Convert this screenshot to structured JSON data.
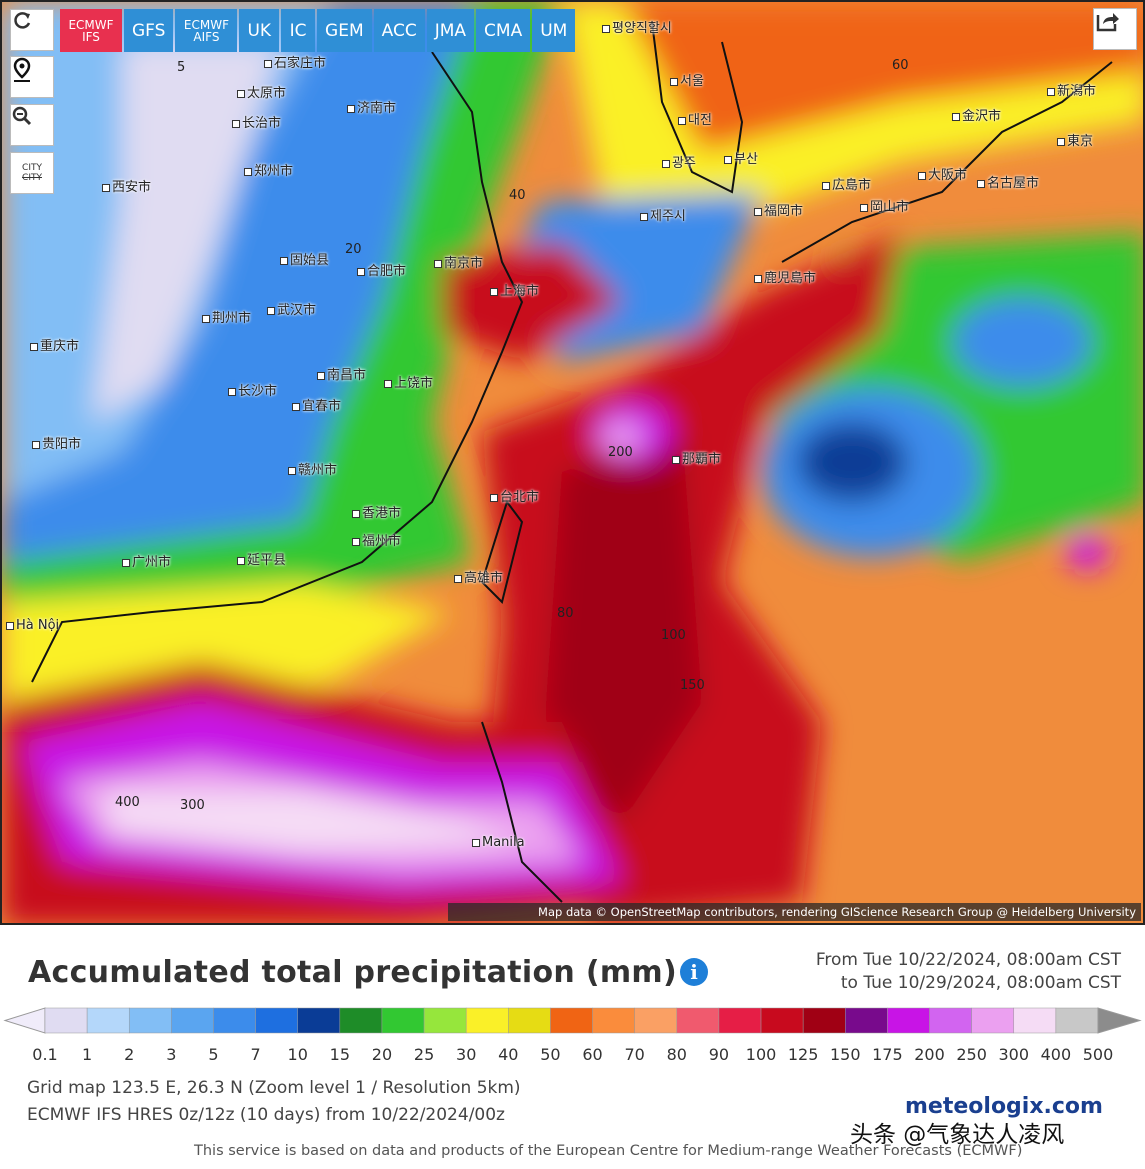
{
  "models": [
    "ECMWF IFS",
    "GFS",
    "ECMWF AIFS",
    "UK",
    "IC",
    "GEM",
    "ACC",
    "JMA",
    "CMA",
    "UM"
  ],
  "active_model": "ECMWF IFS",
  "side_buttons": {
    "city": "CITY"
  },
  "map": {
    "attribution": "Map data © OpenStreetMap contributors, rendering GIScience Research Group @ Heidelberg University",
    "cities": [
      "石家庄市",
      "太原市",
      "济南市",
      "长治市",
      "郑州市",
      "西安市",
      "固始县",
      "合肥市",
      "南京市",
      "上海市",
      "荆州市",
      "武汉市",
      "重庆市",
      "长沙市",
      "南昌市",
      "上饶市",
      "宜春市",
      "贵阳市",
      "赣州市",
      "福州市",
      "台北市",
      "高雄市",
      "延平县",
      "广州市",
      "香港市",
      "Hà Nội",
      "Manila",
      "서울",
      "대전",
      "광주",
      "부산",
      "제주시",
      "평양직할시",
      "広島市",
      "岡山市",
      "大阪市",
      "名古屋市",
      "金沢市",
      "新潟市",
      "東京",
      "福岡市",
      "鹿児島市",
      "那覇市"
    ],
    "contours": [
      "5",
      "20",
      "40",
      "60",
      "80",
      "100",
      "150",
      "200",
      "300",
      "400"
    ]
  },
  "panel": {
    "title": "Accumulated total precipitation (mm)",
    "from": "From Tue 10/22/2024, 08:00am CST",
    "to": "to Tue 10/29/2024, 08:00am CST",
    "grid_info": "Grid map 123.5 E, 26.3 N (Zoom level 1 / Resolution 5km)",
    "run_info": "ECMWF IFS HRES 0z/12z (10 days) from 10/22/2024/00z",
    "brand": "meteologix.com",
    "watermark": "头条 @气象达人凌风",
    "disclaimer": "This service is based on data and products of the European Centre for Medium-range Weather Forecasts (ECMWF)"
  },
  "legend": {
    "labels": [
      "0.1",
      "1",
      "2",
      "3",
      "5",
      "7",
      "10",
      "15",
      "20",
      "25",
      "30",
      "40",
      "50",
      "60",
      "70",
      "80",
      "90",
      "100",
      "125",
      "150",
      "175",
      "200",
      "250",
      "300",
      "400",
      "500"
    ],
    "colors": [
      "#e0dcf2",
      "#b4d7fa",
      "#82bef5",
      "#5aa5f0",
      "#3c8ceb",
      "#1e6fe0",
      "#0a3c96",
      "#1e8c28",
      "#32c832",
      "#96e63c",
      "#faf028",
      "#e6dc14",
      "#f06414",
      "#fa8c3c",
      "#faa064",
      "#f05a6e",
      "#e61e46",
      "#c80a1e",
      "#a00014",
      "#780a8c",
      "#c814e6",
      "#d264f0",
      "#eba0f0",
      "#f5dcf5",
      "#c8c8c8"
    ],
    "below_color": "#f0ecfa",
    "above_color": "#8c8c8c"
  }
}
